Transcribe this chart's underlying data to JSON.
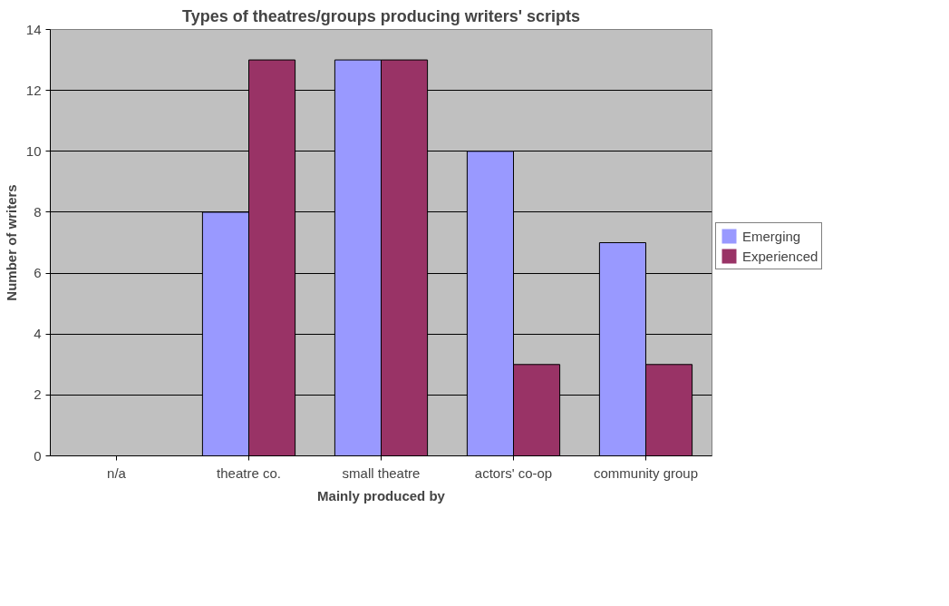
{
  "chart_data": {
    "type": "bar",
    "title": "Types of theatres/groups producing writers' scripts",
    "xlabel": "Mainly produced by",
    "ylabel": "Number of writers",
    "categories": [
      "n/a",
      "theatre co.",
      "small theatre",
      "actors' co-op",
      "community group"
    ],
    "series": [
      {
        "name": "Emerging",
        "color": "#9999ff",
        "values": [
          0,
          8,
          13,
          10,
          7
        ]
      },
      {
        "name": "Experienced",
        "color": "#993366",
        "values": [
          0,
          13,
          13,
          3,
          3
        ]
      }
    ],
    "ylim": [
      0,
      14
    ],
    "yticks": [
      0,
      2,
      4,
      6,
      8,
      10,
      12,
      14
    ],
    "grid": "y",
    "legend": "right"
  }
}
